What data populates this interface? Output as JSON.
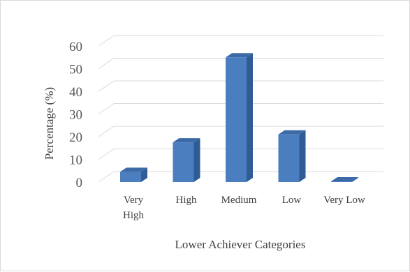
{
  "chart_data": {
    "type": "bar",
    "style": "3d-clustered-column",
    "categories": [
      "Very High",
      "High",
      "Medium",
      "Low",
      "Very Low"
    ],
    "category_lines": [
      [
        "Very",
        "High"
      ],
      [
        "High"
      ],
      [
        "Medium"
      ],
      [
        "Low"
      ],
      [
        "Very Low"
      ]
    ],
    "values": [
      4.5,
      17.5,
      55,
      21,
      0.3
    ],
    "xlabel": "Lower Achiever Categories",
    "ylabel": "Percentage (%)",
    "ylim": [
      0,
      60
    ],
    "yticks": [
      0,
      10,
      20,
      30,
      40,
      50,
      60
    ],
    "grid": true,
    "legend": "none",
    "colors": {
      "bar_front": "#4a7ebf",
      "bar_side": "#2f5c95",
      "bar_top": "#3c6aa6",
      "grid": "#d9d9d9"
    }
  }
}
